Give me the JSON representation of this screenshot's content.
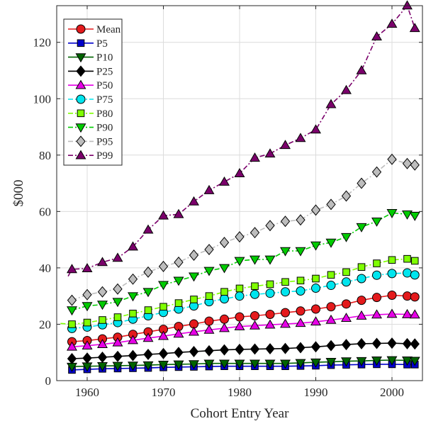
{
  "chart_data": {
    "type": "line",
    "title": "",
    "xlabel": "Cohort Entry Year",
    "ylabel": "$000",
    "xlim": [
      1956,
      2004
    ],
    "ylim": [
      0,
      133
    ],
    "xticks": [
      1960,
      1970,
      1980,
      1990,
      2000
    ],
    "yticks": [
      0,
      20,
      40,
      60,
      80,
      100,
      120
    ],
    "grid": true,
    "legend_position": "top-left",
    "marker_years": [
      1958,
      1960,
      1962,
      1964,
      1966,
      1968,
      1970,
      1972,
      1974,
      1976,
      1978,
      1980,
      1982,
      1984,
      1986,
      1988,
      1990,
      1992,
      1994,
      1996,
      1998,
      2000,
      2002,
      2003
    ],
    "series": [
      {
        "name": "Mean",
        "color": "#e41a1c",
        "marker": "circle",
        "dash": "solid",
        "x": [
          1958,
          1960,
          1962,
          1964,
          1966,
          1968,
          1970,
          1972,
          1974,
          1976,
          1978,
          1980,
          1982,
          1984,
          1986,
          1988,
          1990,
          1992,
          1994,
          1996,
          1998,
          2000,
          2002,
          2003
        ],
        "y": [
          13.8,
          14.2,
          14.8,
          15.4,
          16.4,
          17.3,
          18.2,
          19.2,
          20.1,
          21.1,
          21.8,
          22.6,
          23.0,
          23.5,
          24.1,
          24.7,
          25.4,
          26.2,
          27.2,
          28.5,
          29.5,
          30.3,
          30.0,
          29.7
        ]
      },
      {
        "name": "P5",
        "color": "#0000cc",
        "marker": "square",
        "dash": "solid",
        "x": [
          1958,
          1960,
          1962,
          1964,
          1966,
          1968,
          1970,
          1972,
          1974,
          1976,
          1978,
          1980,
          1982,
          1984,
          1986,
          1988,
          1990,
          1992,
          1994,
          1996,
          1998,
          2000,
          2002,
          2003
        ],
        "y": [
          3.8,
          4.0,
          4.2,
          4.3,
          4.4,
          4.5,
          4.7,
          4.8,
          4.9,
          5.0,
          5.1,
          5.1,
          5.1,
          5.1,
          5.1,
          5.2,
          5.3,
          5.5,
          5.6,
          5.7,
          5.8,
          5.8,
          5.7,
          5.7
        ]
      },
      {
        "name": "P10",
        "color": "#006400",
        "marker": "triangle-down",
        "dash": "solid",
        "x": [
          1958,
          1960,
          1962,
          1964,
          1966,
          1968,
          1970,
          1972,
          1974,
          1976,
          1978,
          1980,
          1982,
          1984,
          1986,
          1988,
          1990,
          1992,
          1994,
          1996,
          1998,
          2000,
          2002,
          2003
        ],
        "y": [
          5.0,
          5.1,
          5.2,
          5.3,
          5.4,
          5.5,
          5.7,
          5.8,
          5.9,
          6.1,
          6.1,
          6.1,
          6.1,
          6.1,
          6.1,
          6.3,
          6.5,
          6.7,
          6.9,
          7.0,
          7.2,
          7.3,
          7.2,
          7.1
        ]
      },
      {
        "name": "P25",
        "color": "#000000",
        "marker": "diamond",
        "dash": "solid",
        "x": [
          1958,
          1960,
          1962,
          1964,
          1966,
          1968,
          1970,
          1972,
          1974,
          1976,
          1978,
          1980,
          1982,
          1984,
          1986,
          1988,
          1990,
          1992,
          1994,
          1996,
          1998,
          2000,
          2002,
          2003
        ],
        "y": [
          7.8,
          8.0,
          8.3,
          8.6,
          8.9,
          9.3,
          9.6,
          10.0,
          10.3,
          10.6,
          10.9,
          11.1,
          11.2,
          11.3,
          11.4,
          11.7,
          12.0,
          12.4,
          12.8,
          13.1,
          13.2,
          13.3,
          13.1,
          13.0
        ]
      },
      {
        "name": "P50",
        "color": "#e600e6",
        "marker": "triangle-up",
        "dash": "solid",
        "x": [
          1958,
          1960,
          1962,
          1964,
          1966,
          1968,
          1970,
          1972,
          1974,
          1976,
          1978,
          1980,
          1982,
          1984,
          1986,
          1988,
          1990,
          1992,
          1994,
          1996,
          1998,
          2000,
          2002,
          2003
        ],
        "y": [
          12.0,
          12.4,
          12.9,
          13.5,
          14.3,
          15.1,
          15.8,
          16.6,
          17.3,
          18.0,
          18.6,
          19.2,
          19.5,
          19.8,
          20.1,
          20.4,
          20.9,
          21.5,
          22.2,
          23.0,
          23.4,
          23.6,
          23.5,
          23.4
        ]
      },
      {
        "name": "P75",
        "color": "#00e5ee",
        "marker": "circle",
        "dash": "dashdot",
        "x": [
          1958,
          1960,
          1962,
          1964,
          1966,
          1968,
          1970,
          1972,
          1974,
          1976,
          1978,
          1980,
          1982,
          1984,
          1986,
          1988,
          1990,
          1992,
          1994,
          1996,
          1998,
          2000,
          2002,
          2003
        ],
        "y": [
          18.5,
          19.0,
          19.8,
          20.6,
          21.8,
          23.0,
          24.2,
          25.4,
          26.5,
          28.0,
          29.0,
          30.0,
          30.6,
          31.0,
          31.5,
          31.8,
          32.8,
          33.8,
          35.0,
          36.2,
          37.4,
          38.0,
          38.2,
          37.5
        ]
      },
      {
        "name": "P80",
        "color": "#7fff00",
        "marker": "square",
        "dash": "dashdot",
        "x": [
          1956.5,
          1958,
          1960,
          1962,
          1964,
          1966,
          1968,
          1970,
          1972,
          1974,
          1976,
          1978,
          1980,
          1982,
          1984,
          1986,
          1988,
          1990,
          1992,
          1994,
          1996,
          1998,
          2000,
          2002,
          2003
        ],
        "y": [
          20.3,
          20.0,
          20.6,
          21.5,
          22.5,
          23.8,
          25.0,
          26.2,
          27.5,
          28.8,
          30.0,
          31.5,
          32.7,
          33.5,
          34.2,
          35.0,
          35.5,
          36.2,
          37.5,
          38.5,
          40.3,
          41.6,
          42.8,
          43.2,
          42.5
        ]
      },
      {
        "name": "P90",
        "color": "#00cc00",
        "marker": "triangle-down",
        "dash": "dashdot",
        "x": [
          1958,
          1960,
          1962,
          1964,
          1966,
          1968,
          1970,
          1972,
          1974,
          1976,
          1978,
          1980,
          1982,
          1984,
          1986,
          1988,
          1990,
          1992,
          1994,
          1996,
          1998,
          2000,
          2002,
          2003
        ],
        "y": [
          25.0,
          26.5,
          27.0,
          28.0,
          30.0,
          31.5,
          34.0,
          35.5,
          37.0,
          39.0,
          40.0,
          42.5,
          43.0,
          43.0,
          46.0,
          46.0,
          48.0,
          49.0,
          51.0,
          54.5,
          56.5,
          59.5,
          59.0,
          58.5
        ]
      },
      {
        "name": "P95",
        "color": "#bdbdbd",
        "marker": "diamond",
        "dash": "dashdot",
        "x": [
          1958,
          1960,
          1962,
          1964,
          1966,
          1968,
          1970,
          1972,
          1974,
          1976,
          1978,
          1980,
          1982,
          1984,
          1986,
          1988,
          1990,
          1992,
          1994,
          1996,
          1998,
          2000,
          2002,
          2003
        ],
        "y": [
          28.5,
          30.5,
          31.5,
          32.5,
          36.0,
          38.5,
          40.5,
          42.0,
          44.5,
          46.5,
          49.0,
          51.0,
          52.5,
          55.0,
          56.5,
          57.0,
          60.5,
          62.5,
          65.5,
          70.0,
          74.0,
          78.5,
          77.0,
          76.5
        ]
      },
      {
        "name": "P99",
        "color": "#7b006b",
        "marker": "triangle-up",
        "dash": "dashdot",
        "x": [
          1957.5,
          1958,
          1960,
          1962,
          1964,
          1966,
          1968,
          1970,
          1972,
          1974,
          1976,
          1978,
          1980,
          1982,
          1984,
          1986,
          1988,
          1990,
          1992,
          1994,
          1996,
          1998,
          2000,
          2002,
          2003
        ],
        "y": [
          37.0,
          39.5,
          39.8,
          42.0,
          43.5,
          47.5,
          53.5,
          58.5,
          59.0,
          63.5,
          67.5,
          70.5,
          73.5,
          79.0,
          80.5,
          83.5,
          86.0,
          89.0,
          98.0,
          103.0,
          110.0,
          122.0,
          126.5,
          133.0,
          125.0
        ]
      }
    ]
  }
}
